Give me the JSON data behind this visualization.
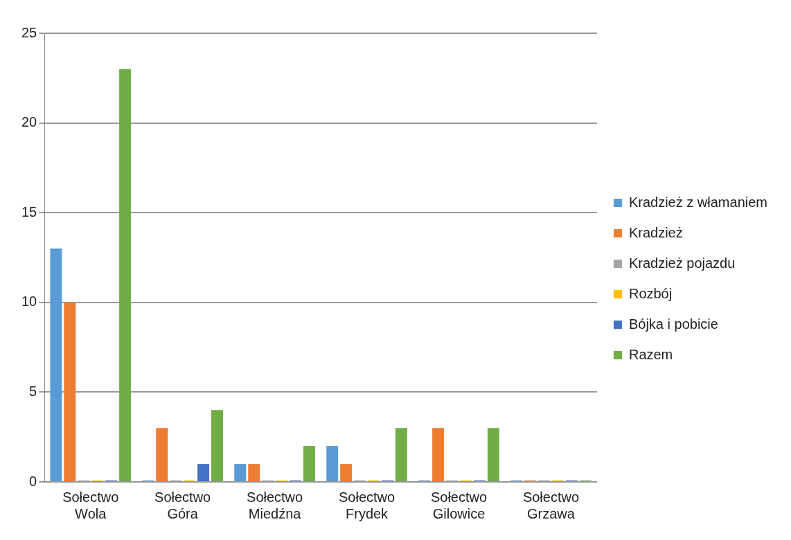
{
  "chart_data": {
    "type": "bar",
    "categories": [
      "Sołectwo Wola",
      "Sołectwo Góra",
      "Sołectwo Miedźna",
      "Sołectwo Frydek",
      "Sołectwo Gilowice",
      "Sołectwo Grzawa"
    ],
    "series": [
      {
        "name": "Kradzież z włamaniem",
        "color": "#5b9bd5",
        "values": [
          13,
          0,
          1,
          2,
          0,
          0
        ]
      },
      {
        "name": "Kradzież",
        "color": "#ed7d31",
        "values": [
          10,
          3,
          1,
          1,
          3,
          0
        ]
      },
      {
        "name": "Kradzież pojazdu",
        "color": "#a5a5a5",
        "values": [
          0,
          0,
          0,
          0,
          0,
          0
        ]
      },
      {
        "name": "Rozbój",
        "color": "#ffc000",
        "values": [
          0,
          0,
          0,
          0,
          0,
          0
        ]
      },
      {
        "name": "Bójka i pobicie",
        "color": "#4472c4",
        "values": [
          0,
          1,
          0,
          0,
          0,
          0
        ]
      },
      {
        "name": "Razem",
        "color": "#70ad47",
        "values": [
          23,
          4,
          2,
          3,
          3,
          0
        ]
      }
    ],
    "ylim": [
      0,
      25
    ],
    "yticks": [
      0,
      5,
      10,
      15,
      20,
      25
    ],
    "grid": "y",
    "legend": "right"
  }
}
